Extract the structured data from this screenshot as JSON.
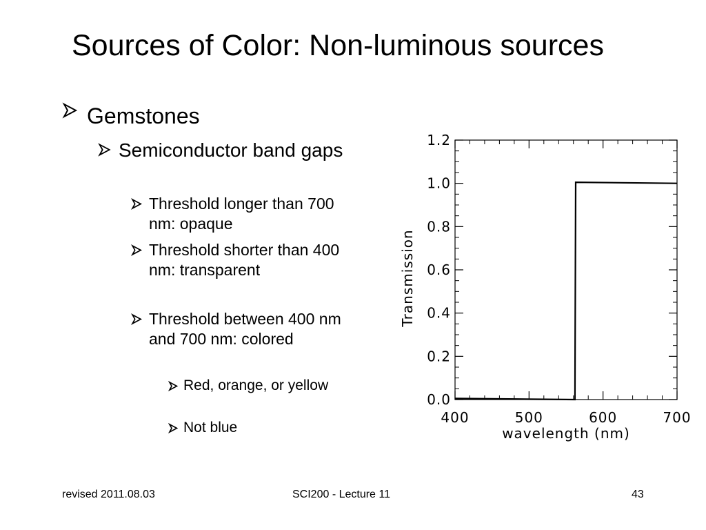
{
  "slide": {
    "title": "Sources of Color: Non-luminous sources",
    "icons": {
      "bullet": "arrow-bullet-icon"
    },
    "bullets": {
      "level1": "Gemstones",
      "level2": "Semiconductor band gaps",
      "level3": [
        "Threshold longer than 700 nm: opaque",
        "Threshold shorter than 400 nm: transparent",
        "Threshold between 400 nm and 700 nm: colored"
      ],
      "level4": [
        "Red, orange, or yellow",
        "Not blue"
      ]
    }
  },
  "chart_data": {
    "type": "line",
    "xlabel": "wavelength (nm)",
    "ylabel": "Transmission",
    "xlim": [
      400,
      700
    ],
    "ylim": [
      0,
      1.2
    ],
    "xticks": [
      "400",
      "500",
      "600",
      "700"
    ],
    "yticks": [
      "0.0",
      "0.2",
      "0.4",
      "0.6",
      "0.8",
      "1.0",
      "1.2"
    ],
    "grid": false,
    "series": [
      {
        "x": [
          400,
          562,
          563,
          700
        ],
        "y": [
          0.005,
          0.0,
          1.005,
          1.0
        ]
      }
    ]
  },
  "footer": {
    "left": "revised 2011.08.03",
    "center": "SCI200 - Lecture 11",
    "right": "43"
  }
}
